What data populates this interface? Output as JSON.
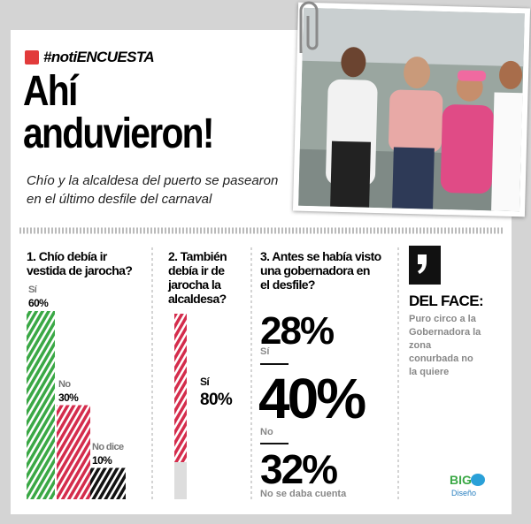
{
  "header": {
    "tag": "#notiENCUESTA",
    "title_lines": [
      "Ahí",
      "anduvieron!"
    ],
    "subtitle_lines": [
      "Chío y la alcaldesa del puerto se pasearon",
      "en el último desfile del carnaval"
    ]
  },
  "polls": [
    {
      "title_lines": [
        "1. Chío debía ir",
        "vestida de jarocha?"
      ],
      "categories": [
        "Sí",
        "No",
        "No dice"
      ],
      "values": [
        60,
        30,
        10
      ],
      "value_labels": [
        "60%",
        "30%",
        "10%"
      ]
    },
    {
      "title_lines": [
        "2. También",
        "debía ir de",
        "jarocha la",
        "alcaldesa?"
      ],
      "categories": [
        "Sí"
      ],
      "values": [
        80
      ],
      "value_labels": [
        "80%"
      ]
    },
    {
      "title_lines": [
        "3. Antes se había visto",
        "una gobernadora en",
        "el desfile?"
      ],
      "results": [
        {
          "value_label": "28%",
          "label": "Sí"
        },
        {
          "value_label": "40%",
          "label": "No"
        },
        {
          "value_label": "32%",
          "label": "No se daba cuenta"
        }
      ]
    }
  ],
  "quote": {
    "title": "DEL FACE:",
    "text_lines": [
      "Puro circo a la",
      "Gobernadora la",
      "zona",
      "conurbada no",
      "la quiere"
    ]
  },
  "logo": {
    "name": "BIG",
    "sub": "Diseño"
  }
}
